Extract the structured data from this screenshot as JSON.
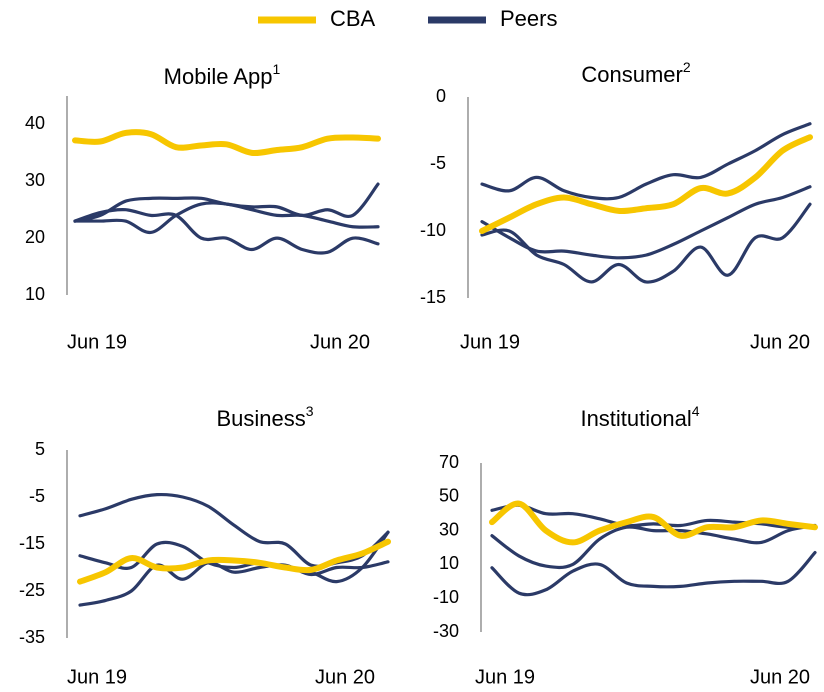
{
  "chart_data": [
    {
      "type": "line",
      "title": "Mobile App",
      "title_superscript": "1",
      "categories": [
        "Jun 19",
        null,
        null,
        null,
        null,
        null,
        null,
        null,
        null,
        null,
        null,
        null,
        "Jun 20"
      ],
      "ylim": [
        10,
        45
      ],
      "yticks": [
        10,
        20,
        30,
        40
      ],
      "series": [
        {
          "name": "CBA",
          "color": "#f7c600",
          "values": [
            37.2,
            37,
            38.5,
            38.3,
            36,
            36.3,
            36.5,
            35,
            35.5,
            36,
            37.5,
            37.7,
            37.5
          ]
        },
        {
          "name": "Peers",
          "color": "#2b3a67",
          "values": [
            23,
            24,
            26.5,
            27,
            27,
            27,
            26,
            25.5,
            25.5,
            24,
            25,
            24,
            29.5
          ]
        },
        {
          "name": "Peers",
          "color": "#2b3a67",
          "values": [
            23,
            23,
            23,
            21,
            24,
            26,
            26,
            25,
            24,
            24,
            23,
            22,
            22
          ]
        },
        {
          "name": "Peers",
          "color": "#2b3a67",
          "values": [
            23,
            24.5,
            25,
            24,
            24,
            20,
            20,
            18,
            20,
            18,
            17.5,
            20,
            19
          ]
        }
      ]
    },
    {
      "type": "line",
      "title": "Consumer",
      "title_superscript": "2",
      "categories": [
        "Jun 19",
        null,
        null,
        null,
        null,
        null,
        null,
        null,
        null,
        null,
        null,
        null,
        "Jun 20"
      ],
      "ylim": [
        -15,
        0
      ],
      "yticks": [
        -15,
        -10,
        -5,
        0
      ],
      "series": [
        {
          "name": "CBA",
          "color": "#f7c600",
          "values": [
            -10,
            -9,
            -8,
            -7.5,
            -8,
            -8.5,
            -8.3,
            -8,
            -6.8,
            -7.2,
            -6,
            -4,
            -3
          ]
        },
        {
          "name": "Peers",
          "color": "#2b3a67",
          "values": [
            -6.5,
            -7,
            -6,
            -7,
            -7.5,
            -7.5,
            -6.5,
            -5.8,
            -6,
            -5,
            -4,
            -2.8,
            -2
          ]
        },
        {
          "name": "Peers",
          "color": "#2b3a67",
          "values": [
            -9.3,
            -10.5,
            -11.5,
            -11.5,
            -11.8,
            -12,
            -11.8,
            -11,
            -10,
            -9,
            -8,
            -7.5,
            -6.7
          ]
        },
        {
          "name": "Peers",
          "color": "#2b3a67",
          "values": [
            -10.3,
            -10,
            -11.8,
            -12.5,
            -13.8,
            -12.5,
            -13.8,
            -13,
            -11.2,
            -13.3,
            -10.5,
            -10.5,
            -8
          ]
        }
      ]
    },
    {
      "type": "line",
      "title": "Business",
      "title_superscript": "3",
      "categories": [
        "Jun 19",
        null,
        null,
        null,
        null,
        null,
        null,
        null,
        null,
        null,
        null,
        null,
        "Jun 20"
      ],
      "ylim": [
        -35,
        5
      ],
      "yticks": [
        -35,
        -25,
        -15,
        -5,
        5
      ],
      "series": [
        {
          "name": "CBA",
          "color": "#f7c600",
          "values": [
            -23,
            -21,
            -18,
            -20,
            -20,
            -18.5,
            -18.5,
            -19,
            -20,
            -20.5,
            -18.5,
            -17,
            -14.5
          ]
        },
        {
          "name": "Peers",
          "color": "#2b3a67",
          "values": [
            -9,
            -7.5,
            -5.5,
            -4.5,
            -5,
            -7,
            -11,
            -14.5,
            -15,
            -19.5,
            -19,
            -17.5,
            -12.5
          ]
        },
        {
          "name": "Peers",
          "color": "#2b3a67",
          "values": [
            -17.5,
            -19,
            -20,
            -15,
            -15.5,
            -19,
            -20,
            -19,
            -20,
            -21,
            -23,
            -20,
            -12.5
          ]
        },
        {
          "name": "Peers",
          "color": "#2b3a67",
          "values": [
            -28,
            -27,
            -25,
            -19.5,
            -22.5,
            -19,
            -21,
            -20,
            -19.5,
            -21.5,
            -20,
            -20,
            -18.8
          ]
        }
      ]
    },
    {
      "type": "line",
      "title": "Institutional",
      "title_superscript": "4",
      "categories": [
        "Jun 19",
        null,
        null,
        null,
        null,
        null,
        null,
        null,
        null,
        null,
        null,
        null,
        "Jun 20"
      ],
      "ylim": [
        -30,
        70
      ],
      "yticks": [
        -30,
        -10,
        10,
        30,
        50,
        70
      ],
      "series": [
        {
          "name": "CBA",
          "color": "#f7c600",
          "values": [
            35,
            46,
            30,
            23,
            30,
            35,
            38,
            27,
            32,
            32,
            36,
            34,
            32
          ]
        },
        {
          "name": "Peers",
          "color": "#2b3a67",
          "values": [
            42,
            45,
            40,
            40,
            37,
            33,
            34,
            33,
            36,
            35,
            34,
            32,
            33
          ]
        },
        {
          "name": "Peers",
          "color": "#2b3a67",
          "values": [
            27,
            15,
            9,
            10,
            25,
            32,
            30,
            30,
            28,
            25,
            23,
            30,
            33
          ]
        },
        {
          "name": "Peers",
          "color": "#2b3a67",
          "values": [
            8,
            -7,
            -5,
            6,
            10,
            -1,
            -3,
            -3,
            -1,
            0,
            0,
            0,
            17
          ]
        }
      ]
    }
  ]
}
